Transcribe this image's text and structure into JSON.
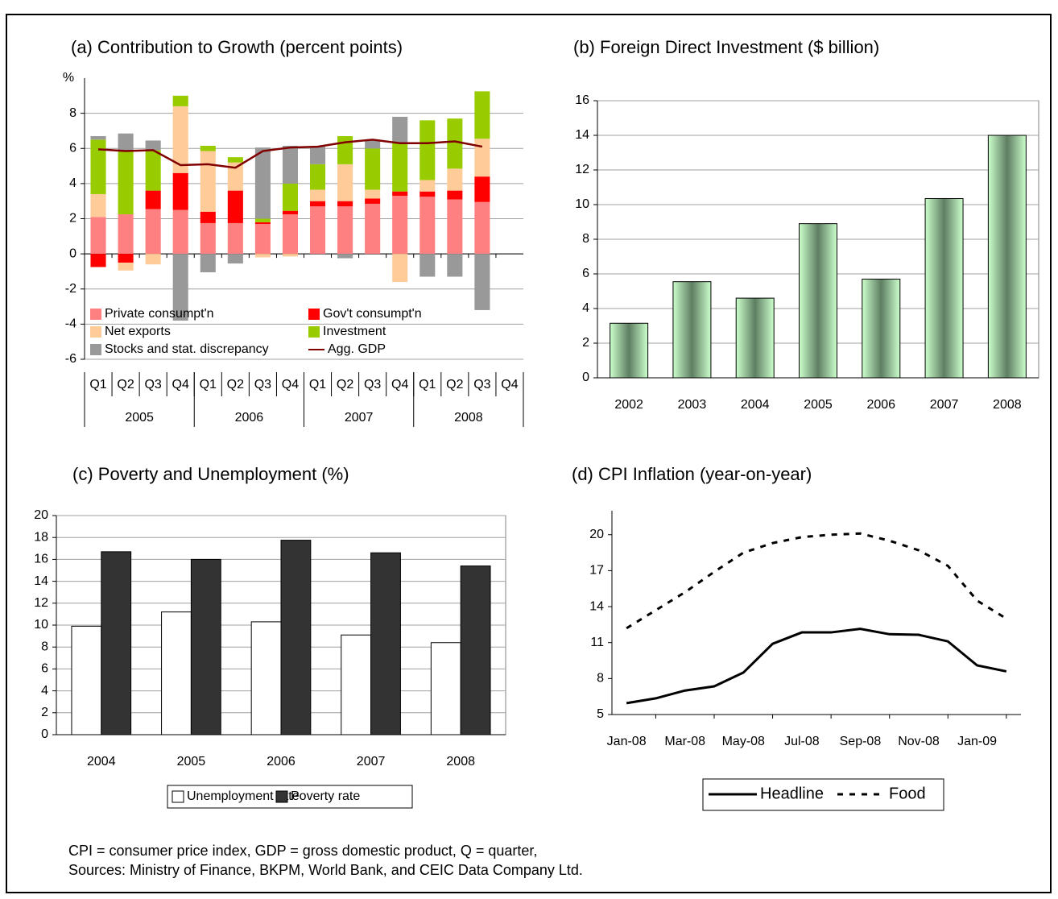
{
  "chart_data": [
    {
      "type": "bar",
      "stacked": true,
      "title": "(a) Contribution to Growth (percent points)",
      "y_unit": "%",
      "categories": [
        "Q1",
        "Q2",
        "Q3",
        "Q4",
        "Q1",
        "Q2",
        "Q3",
        "Q4",
        "Q1",
        "Q2",
        "Q3",
        "Q4",
        "Q1",
        "Q2",
        "Q3",
        "Q4"
      ],
      "category_groups": [
        "2005",
        "2006",
        "2007",
        "2008"
      ],
      "ylim": [
        -6,
        10
      ],
      "yticks": [
        -6,
        -4,
        -2,
        0,
        2,
        4,
        6,
        8
      ],
      "grid": true,
      "series": [
        {
          "name": "Private consumpt'n",
          "color": "#ff8080",
          "values": [
            2.1,
            2.25,
            2.55,
            2.5,
            1.75,
            1.75,
            1.7,
            2.25,
            2.7,
            2.7,
            2.85,
            3.3,
            3.25,
            3.1,
            2.95,
            null
          ]
        },
        {
          "name": "Gov't consumpt'n",
          "color": "#ff0000",
          "values": [
            -0.75,
            -0.5,
            1.05,
            2.1,
            0.65,
            1.85,
            0.1,
            0.2,
            0.3,
            0.3,
            0.3,
            0.25,
            0.3,
            0.5,
            1.45,
            null
          ]
        },
        {
          "name": "Net exports",
          "color": "#ffcc99",
          "values": [
            1.3,
            -0.45,
            -0.6,
            3.8,
            3.45,
            1.6,
            -0.2,
            -0.15,
            0.65,
            2.1,
            0.5,
            -1.6,
            0.65,
            1.25,
            2.15,
            null
          ]
        },
        {
          "name": "Investment",
          "color": "#99cc00",
          "values": [
            3.1,
            3.6,
            2.3,
            0.6,
            0.3,
            0.3,
            0.2,
            1.55,
            1.45,
            1.6,
            2.35,
            2.8,
            3.4,
            2.85,
            2.7,
            null
          ]
        },
        {
          "name": "Stocks and stat. discrepancy",
          "color": "#999999",
          "values": [
            0.2,
            1.0,
            0.55,
            -3.8,
            -1.05,
            -0.55,
            4.05,
            2.15,
            1.0,
            -0.25,
            0.5,
            1.45,
            -1.3,
            -1.3,
            -3.2,
            null
          ]
        },
        {
          "name": "Agg. GDP",
          "color": "#800000",
          "type": "line",
          "values": [
            5.95,
            5.85,
            5.9,
            5.05,
            5.1,
            4.9,
            5.85,
            6.05,
            6.1,
            6.35,
            6.5,
            6.3,
            6.3,
            6.4,
            6.1,
            null
          ]
        }
      ]
    },
    {
      "type": "bar",
      "title": "(b) Foreign Direct Investment ($ billion)",
      "categories": [
        "2002",
        "2003",
        "2004",
        "2005",
        "2006",
        "2007",
        "2008"
      ],
      "values": [
        3.15,
        5.55,
        4.6,
        8.9,
        5.7,
        10.35,
        14.0
      ],
      "color": "#ccffcc",
      "ylim": [
        0,
        16
      ],
      "yticks": [
        0,
        2,
        4,
        6,
        8,
        10,
        12,
        14,
        16
      ],
      "grid": true
    },
    {
      "type": "bar",
      "title": "(c) Poverty and Unemployment (%)",
      "categories": [
        "2004",
        "2005",
        "2006",
        "2007",
        "2008"
      ],
      "ylim": [
        0,
        20
      ],
      "yticks": [
        0,
        2,
        4,
        6,
        8,
        10,
        12,
        14,
        16,
        18,
        20
      ],
      "grid": true,
      "series": [
        {
          "name": "Unemployment rate",
          "color": "#ffffff",
          "values": [
            9.9,
            11.2,
            10.3,
            9.1,
            8.4
          ]
        },
        {
          "name": "Poverty rate",
          "color": "#333333",
          "values": [
            16.7,
            16.0,
            17.75,
            16.6,
            15.4
          ]
        }
      ]
    },
    {
      "type": "line",
      "title": "(d) CPI Inflation (year-on-year)",
      "categories": [
        "Jan-08",
        null,
        "Mar-08",
        null,
        "May-08",
        null,
        "Jul-08",
        null,
        "Sep-08",
        null,
        "Nov-08",
        null,
        "Jan-09",
        null
      ],
      "ylim": [
        5,
        22
      ],
      "yticks": [
        5,
        8,
        11,
        14,
        17,
        20
      ],
      "grid": false,
      "series": [
        {
          "name": "Headline",
          "color": "#000000",
          "dash": "solid",
          "values": [
            5.95,
            6.35,
            7.0,
            7.35,
            8.5,
            10.9,
            11.85,
            11.85,
            12.15,
            11.7,
            11.65,
            11.1,
            9.1,
            8.6
          ]
        },
        {
          "name": "Food",
          "color": "#000000",
          "dash": "dotted",
          "values": [
            12.2,
            13.7,
            15.2,
            16.9,
            18.5,
            19.3,
            19.8,
            20.0,
            20.1,
            19.5,
            18.7,
            17.4,
            14.5,
            13.0
          ]
        }
      ]
    }
  ],
  "notes": [
    "CPI = consumer price index, GDP = gross domestic product, Q = quarter,",
    "Sources: Ministry of Finance, BKPM, World Bank, and CEIC Data Company Ltd."
  ]
}
